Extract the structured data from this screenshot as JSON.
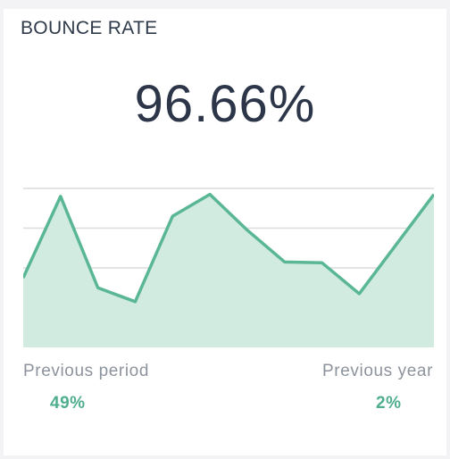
{
  "widget": {
    "title": "BOUNCE RATE",
    "value": "96.66%",
    "previous_period_label": "Previous period",
    "previous_period_value": "49%",
    "previous_year_label": "Previous year",
    "previous_year_value": "2%"
  },
  "colors": {
    "line": "#5ab795",
    "fill": "#d2ebe1",
    "value_accent": "#4fae8d",
    "grid": "#dcdcdc"
  },
  "chart_data": {
    "type": "area",
    "title": "",
    "xlabel": "",
    "ylabel": "",
    "grid": true,
    "ylim": [
      0,
      4
    ],
    "values": [
      1.75,
      3.8,
      1.5,
      1.15,
      3.3,
      3.85,
      2.95,
      2.15,
      2.13,
      1.35,
      2.6,
      3.85
    ]
  }
}
